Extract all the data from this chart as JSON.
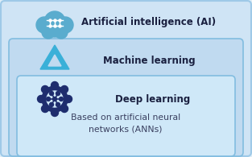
{
  "outer_box_color": "#cfe4f5",
  "outer_box_edge": "#9ec9e8",
  "mid_box_color": "#c0daf0",
  "mid_box_edge": "#82bde0",
  "inner_box_color": "#cfe8f8",
  "inner_box_edge": "#82bde0",
  "fig_bg": "#deeef8",
  "ai_label": "Artificial intelligence (AI)",
  "ml_label": "Machine learning",
  "dl_label": "Deep learning",
  "ann_label": "Based on artificial neural\nnetworks (ANNs)",
  "label_color": "#1a2040",
  "ann_color": "#3a4060",
  "label_fontsize": 8.5,
  "ann_fontsize": 7.8,
  "cloud_color": "#5aacce",
  "ml_icon_color": "#3ab0d8",
  "dl_icon_color": "#1e2d6e"
}
